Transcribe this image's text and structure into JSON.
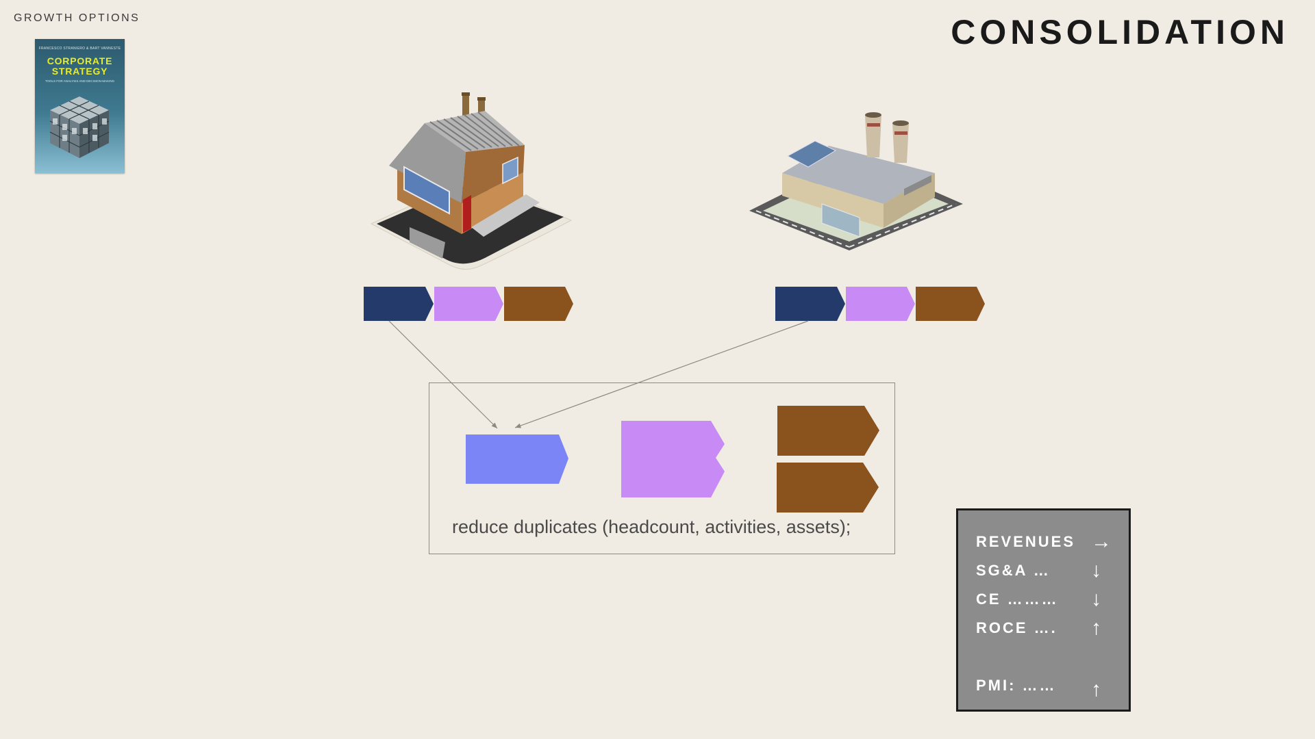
{
  "header": {
    "section_label": "GROWTH OPTIONS",
    "title": "CONSOLIDATION"
  },
  "book": {
    "authors": "FRANCESCO STRANIERO & BART VANNESTE",
    "title_line1": "CORPORATE",
    "title_line2": "STRATEGY",
    "subtitle": "TOOLS FOR ANALYSIS AND DECISION-MAKING"
  },
  "colors": {
    "background": "#f0ece3",
    "navy": "#233a6b",
    "violet": "#c88af5",
    "brown": "#8a521d",
    "merged_blue": "#7b85f5",
    "panel": "#8c8c8c"
  },
  "diagram": {
    "left_company_icon": "brick-factory-icon",
    "right_company_icon": "modern-plant-icon",
    "reduce_text": "reduce duplicates (headcount, activities, assets);"
  },
  "metrics": [
    {
      "label": "REVENUES",
      "arrow": "→",
      "icon": "arrow-right-icon"
    },
    {
      "label": "SG&A …",
      "arrow": "↓",
      "icon": "arrow-down-icon"
    },
    {
      "label": "CE ………",
      "arrow": "↓",
      "icon": "arrow-down-icon"
    },
    {
      "label": "ROCE ….",
      "arrow": "↑",
      "icon": "arrow-up-icon"
    },
    {
      "label": "PMI: ……",
      "arrow": "↑",
      "icon": "arrow-up-icon"
    }
  ]
}
